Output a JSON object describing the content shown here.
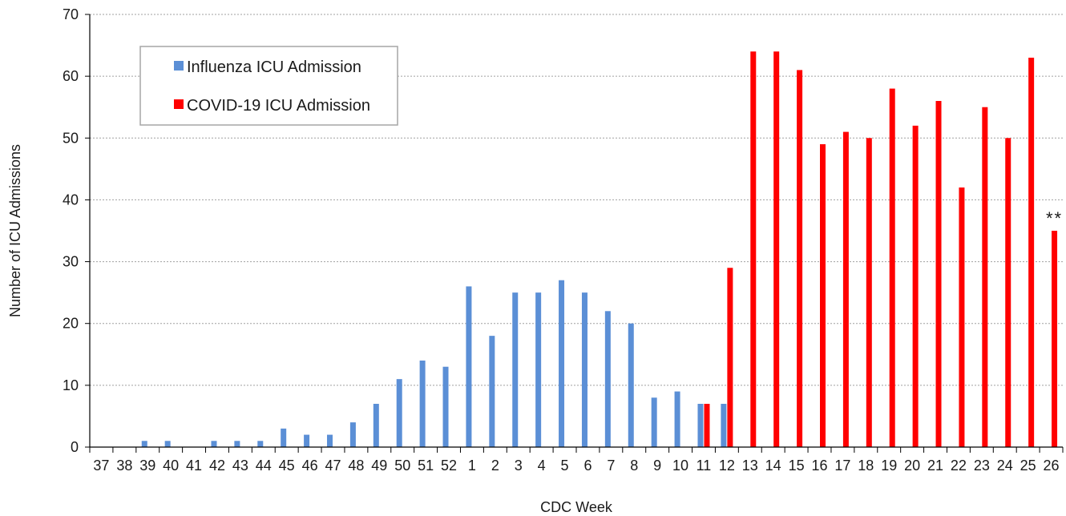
{
  "chart_data": {
    "type": "bar",
    "xlabel": "CDC Week",
    "ylabel": "Number of ICU Admissions",
    "ylim": [
      0,
      70
    ],
    "yticks": [
      0,
      10,
      20,
      30,
      40,
      50,
      60,
      70
    ],
    "grid": true,
    "legend_position": "top-left",
    "categories": [
      "37",
      "38",
      "39",
      "40",
      "41",
      "42",
      "43",
      "44",
      "45",
      "46",
      "47",
      "48",
      "49",
      "50",
      "51",
      "52",
      "1",
      "2",
      "3",
      "4",
      "5",
      "6",
      "7",
      "8",
      "9",
      "10",
      "11",
      "12",
      "13",
      "14",
      "15",
      "16",
      "17",
      "18",
      "19",
      "20",
      "21",
      "22",
      "23",
      "24",
      "25",
      "26"
    ],
    "series": [
      {
        "name": "Influenza ICU Admission",
        "color": "#5b8fd6",
        "values": [
          0,
          0,
          1,
          1,
          0,
          1,
          1,
          1,
          3,
          2,
          2,
          4,
          7,
          11,
          14,
          13,
          26,
          18,
          25,
          25,
          27,
          25,
          22,
          20,
          8,
          9,
          7,
          7,
          0,
          0,
          0,
          0,
          0,
          0,
          0,
          0,
          0,
          0,
          0,
          0,
          0,
          0
        ]
      },
      {
        "name": "COVID-19 ICU Admission",
        "color": "#ff0000",
        "values": [
          0,
          0,
          0,
          0,
          0,
          0,
          0,
          0,
          0,
          0,
          0,
          0,
          0,
          0,
          0,
          0,
          0,
          0,
          0,
          0,
          0,
          0,
          0,
          0,
          0,
          0,
          7,
          29,
          64,
          64,
          61,
          49,
          51,
          50,
          58,
          52,
          56,
          42,
          55,
          50,
          63,
          35
        ]
      }
    ],
    "annotations": [
      {
        "text": "**",
        "category": "26",
        "series": "COVID-19 ICU Admission"
      }
    ]
  }
}
